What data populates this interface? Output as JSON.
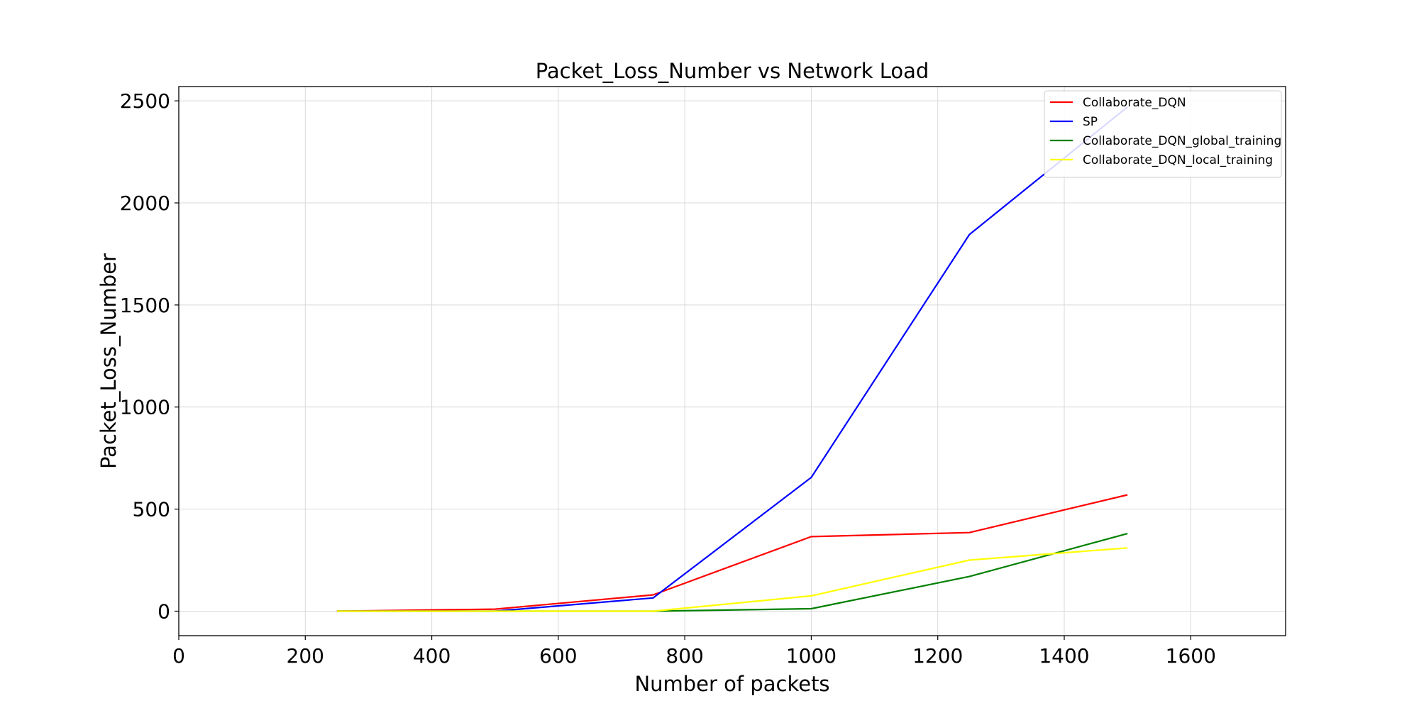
{
  "chart_data": {
    "type": "line",
    "title": "Packet_Loss_Number vs Network Load",
    "xlabel": "Number of packets",
    "ylabel": "Packet_Loss_Number",
    "xlim": [
      0,
      1750
    ],
    "ylim": [
      -120,
      2570
    ],
    "x_ticks": [
      0,
      200,
      400,
      600,
      800,
      1000,
      1200,
      1400,
      1600
    ],
    "y_ticks": [
      0,
      500,
      1000,
      1500,
      2000,
      2500
    ],
    "grid": true,
    "legend_position": "top-right",
    "x": [
      250,
      500,
      750,
      1000,
      1250,
      1500
    ],
    "series": [
      {
        "name": "Collaborate_DQN",
        "color": "#ff0000",
        "values": [
          0,
          10,
          80,
          365,
          385,
          570
        ]
      },
      {
        "name": "SP",
        "color": "#0000ff",
        "values": [
          0,
          0,
          65,
          655,
          1845,
          2470
        ]
      },
      {
        "name": "Collaborate_DQN_global_training",
        "color": "#008000",
        "values": [
          0,
          0,
          0,
          12,
          170,
          380
        ]
      },
      {
        "name": "Collaborate_DQN_local_training",
        "color": "#ffff00",
        "values": [
          0,
          0,
          0,
          75,
          250,
          310
        ]
      }
    ]
  }
}
